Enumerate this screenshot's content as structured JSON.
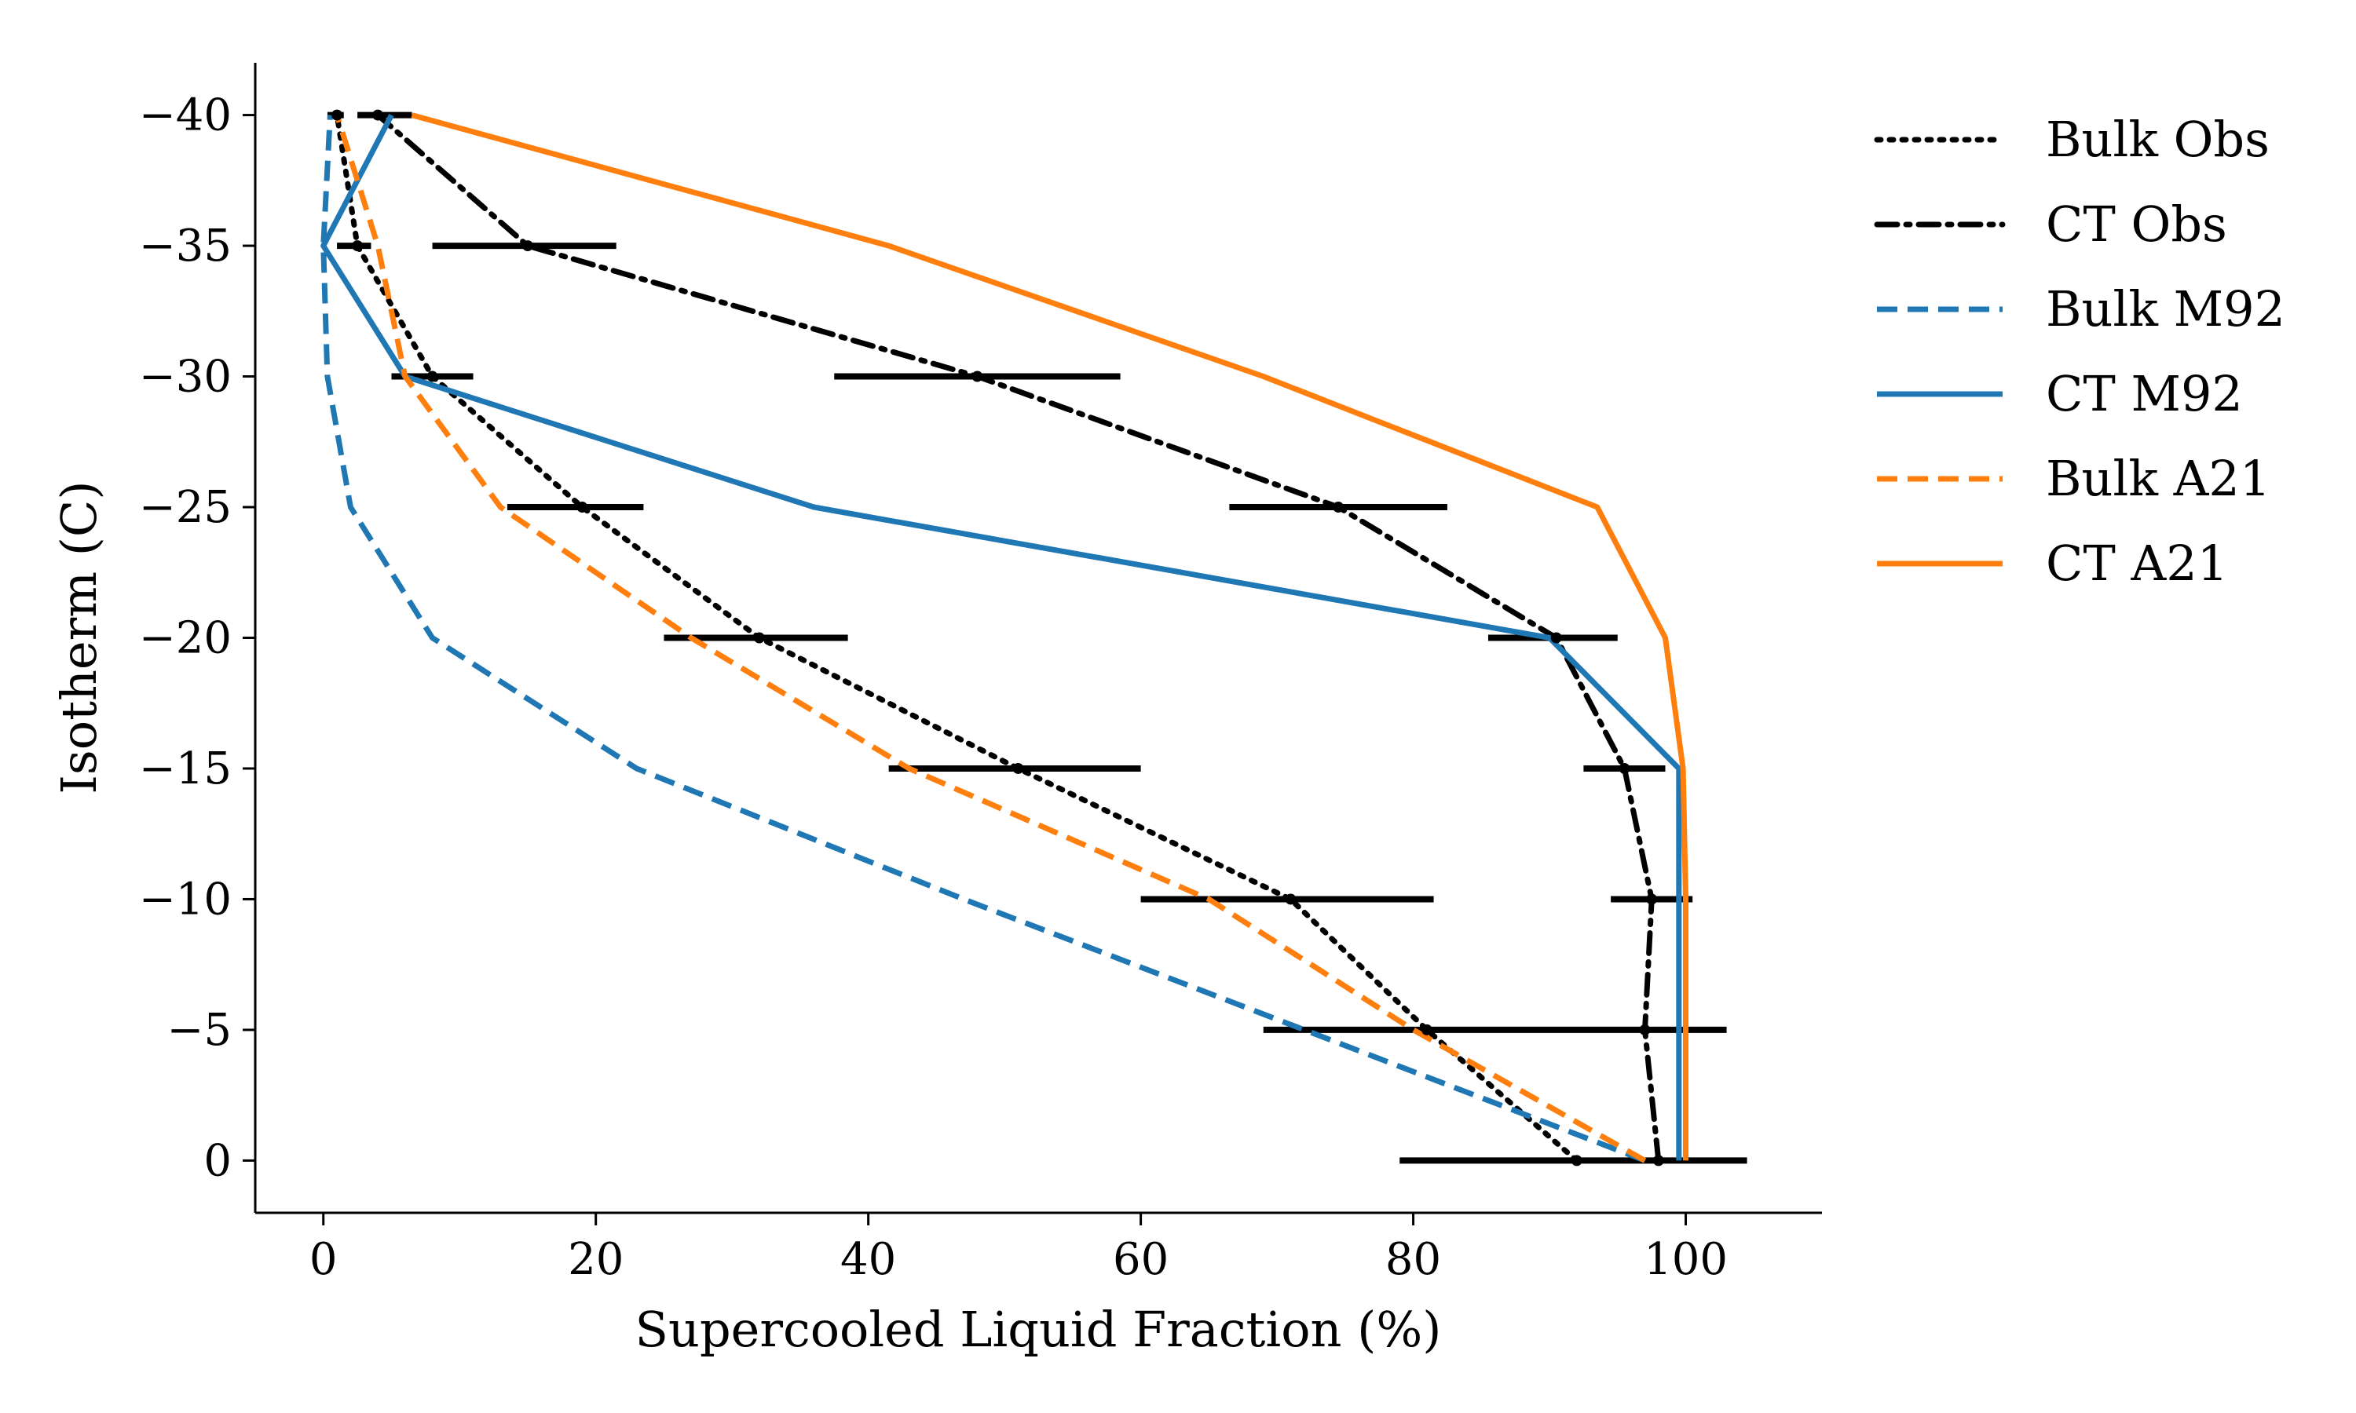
{
  "chart_data": {
    "type": "line",
    "xlabel": "Supercooled Liquid Fraction (%)",
    "ylabel": "Isotherm (C)",
    "xlim": [
      -5,
      110
    ],
    "ylim": [
      2,
      -42
    ],
    "x_ticks": [
      0,
      20,
      40,
      60,
      80,
      100
    ],
    "y_ticks": [
      0,
      -5,
      -10,
      -15,
      -20,
      -25,
      -30,
      -35,
      -40
    ],
    "grid": false,
    "legend_position": "outside-right",
    "y": [
      0,
      -5,
      -10,
      -15,
      -20,
      -25,
      -30,
      -35,
      -40
    ],
    "series": [
      {
        "name": "Bulk Obs",
        "color": "#000000",
        "style": "dotted",
        "x": [
          92,
          81,
          71,
          51,
          32,
          19,
          8,
          2.5,
          1
        ]
      },
      {
        "name": "CT Obs",
        "color": "#000000",
        "style": "dashdot",
        "x": [
          98,
          97,
          97.5,
          95.5,
          90.5,
          74.5,
          48,
          15,
          4
        ]
      },
      {
        "name": "Bulk M92",
        "color": "#1f77b4",
        "style": "dashed",
        "x": [
          97,
          72,
          47,
          23,
          8,
          2,
          0.3,
          0,
          0.5
        ]
      },
      {
        "name": "CT M92",
        "color": "#1f77b4",
        "style": "solid",
        "x": [
          99.5,
          99.5,
          99.5,
          99.5,
          90,
          36,
          6,
          0,
          5
        ]
      },
      {
        "name": "Bulk A21",
        "color": "#ff7f0e",
        "style": "dashed",
        "x": [
          97,
          80,
          65,
          43,
          27,
          13,
          6,
          4,
          1
        ]
      },
      {
        "name": "CT A21",
        "color": "#ff7f0e",
        "style": "solid",
        "x": [
          100,
          100,
          100,
          99.8,
          98.5,
          93.5,
          69,
          41.5,
          6.5
        ]
      }
    ],
    "error_bars": [
      {
        "y": 0,
        "xmin": 79,
        "xmax": 104.5
      },
      {
        "y": -5,
        "xmin": 69,
        "xmax": 103
      },
      {
        "y": -10,
        "xmin": 60,
        "xmax": 81.5
      },
      {
        "y": -10,
        "xmin": 94.5,
        "xmax": 100.5
      },
      {
        "y": -15,
        "xmin": 41.5,
        "xmax": 60
      },
      {
        "y": -15,
        "xmin": 92.5,
        "xmax": 98.5
      },
      {
        "y": -20,
        "xmin": 25,
        "xmax": 38.5
      },
      {
        "y": -20,
        "xmin": 85.5,
        "xmax": 95
      },
      {
        "y": -25,
        "xmin": 13.5,
        "xmax": 23.5
      },
      {
        "y": -25,
        "xmin": 66.5,
        "xmax": 82.5
      },
      {
        "y": -30,
        "xmin": 5,
        "xmax": 11
      },
      {
        "y": -30,
        "xmin": 37.5,
        "xmax": 58.5
      },
      {
        "y": -35,
        "xmin": 1,
        "xmax": 3.5
      },
      {
        "y": -35,
        "xmin": 8,
        "xmax": 21.5
      },
      {
        "y": -40,
        "xmin": 0.3,
        "xmax": 1.5
      },
      {
        "y": -40,
        "xmin": 2.5,
        "xmax": 6.5
      }
    ]
  }
}
